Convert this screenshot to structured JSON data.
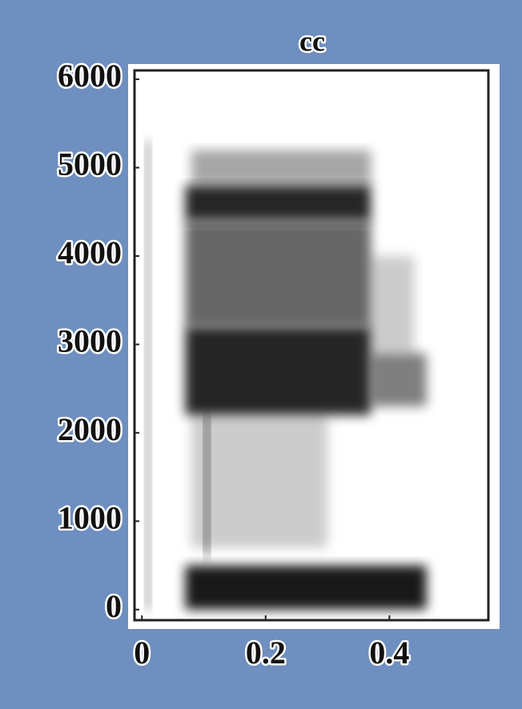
{
  "chart_data": {
    "type": "spectrogram",
    "title": "cc",
    "xlim": [
      -0.012,
      0.56
    ],
    "xticks": [
      0,
      0.2,
      0.4
    ],
    "ylim": [
      -120,
      6100
    ],
    "yticks": [
      0,
      1000,
      2000,
      3000,
      4000,
      5000,
      6000
    ],
    "color": "#000000",
    "regions": [
      {
        "x": [
          0.07,
          0.46
        ],
        "y": [
          0,
          500
        ],
        "opacity": 0.9
      },
      {
        "x": [
          0.07,
          0.37
        ],
        "y": [
          2200,
          3200
        ],
        "opacity": 0.85
      },
      {
        "x": [
          0.07,
          0.37
        ],
        "y": [
          3200,
          4400
        ],
        "opacity": 0.6
      },
      {
        "x": [
          0.07,
          0.37
        ],
        "y": [
          4400,
          4800
        ],
        "opacity": 0.85
      },
      {
        "x": [
          0.08,
          0.37
        ],
        "y": [
          4800,
          5200
        ],
        "opacity": 0.35
      },
      {
        "x": [
          0.37,
          0.46
        ],
        "y": [
          2300,
          2900
        ],
        "opacity": 0.5
      },
      {
        "x": [
          0.37,
          0.44
        ],
        "y": [
          2900,
          4000
        ],
        "opacity": 0.2
      },
      {
        "x": [
          0.08,
          0.3
        ],
        "y": [
          700,
          2200
        ],
        "opacity": 0.2
      },
      {
        "x": [
          0.005,
          0.015
        ],
        "y": [
          0,
          5300
        ],
        "opacity": 0.35
      },
      {
        "x": [
          0.1,
          0.11
        ],
        "y": [
          600,
          2200
        ],
        "opacity": 0.5
      }
    ]
  }
}
